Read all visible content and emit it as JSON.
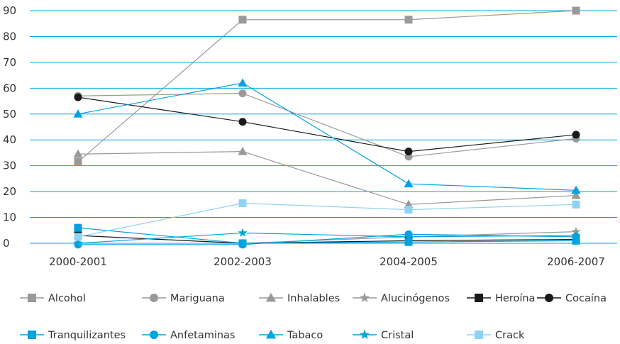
{
  "chart_data": {
    "type": "line",
    "categories": [
      "2000-2001",
      "2002-2003",
      "2004-2005",
      "2006-2007"
    ],
    "ylim": [
      0,
      90
    ],
    "yticks": [
      0,
      10,
      20,
      30,
      40,
      50,
      60,
      70,
      80,
      90
    ],
    "grid": true,
    "legend_position": "bottom",
    "series": [
      {
        "name": "Alcohol",
        "values": [
          31.5,
          86.5,
          86.5,
          90
        ],
        "color": "#999999",
        "marker": "square"
      },
      {
        "name": "Mariguana",
        "values": [
          57,
          58,
          33.5,
          40.5
        ],
        "color": "#999999",
        "marker": "circle"
      },
      {
        "name": "Inhalables",
        "values": [
          34.5,
          35.5,
          15,
          18.5
        ],
        "color": "#999999",
        "marker": "triangle"
      },
      {
        "name": "Alucinógenos",
        "values": [
          0,
          0,
          2.5,
          4.5
        ],
        "color": "#999999",
        "marker": "star"
      },
      {
        "name": "Heroína",
        "values": [
          3,
          0,
          1,
          1.5
        ],
        "color": "#1a1a1a",
        "marker": "square"
      },
      {
        "name": "Cocaína",
        "values": [
          56.5,
          47,
          35.5,
          42
        ],
        "color": "#1a1a1a",
        "marker": "circle"
      },
      {
        "name": "Tranquilizantes",
        "values": [
          6,
          0,
          0.5,
          1
        ],
        "color": "#00a3e0",
        "marker": "square"
      },
      {
        "name": "Anfetaminas",
        "values": [
          -0.5,
          -0.5,
          3.5,
          2.5
        ],
        "color": "#00a3e0",
        "marker": "circle"
      },
      {
        "name": "Tabaco",
        "values": [
          50,
          62,
          23,
          20.5
        ],
        "color": "#00a3e0",
        "marker": "triangle"
      },
      {
        "name": "Cristal",
        "values": [
          0,
          4,
          2.5,
          3
        ],
        "color": "#00a3e0",
        "marker": "star"
      },
      {
        "name": "Crack",
        "values": [
          2.5,
          15.5,
          13,
          15
        ],
        "color": "#8fd3f4",
        "marker": "square"
      }
    ]
  }
}
